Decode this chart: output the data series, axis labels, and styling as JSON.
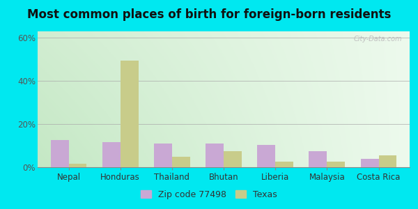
{
  "title": "Most common places of birth for foreign-born residents",
  "categories": [
    "Nepal",
    "Honduras",
    "Thailand",
    "Bhutan",
    "Liberia",
    "Malaysia",
    "Costa Rica"
  ],
  "zip_values": [
    12.5,
    11.5,
    11.0,
    11.0,
    10.5,
    7.5,
    4.0
  ],
  "texas_values": [
    1.5,
    49.5,
    5.0,
    7.5,
    2.5,
    2.5,
    5.5
  ],
  "zip_color": "#c9a8d4",
  "texas_color": "#c8cc8a",
  "bar_width": 0.35,
  "ylim": [
    0,
    63
  ],
  "yticks": [
    0,
    20,
    40,
    60
  ],
  "ytick_labels": [
    "0%",
    "20%",
    "40%",
    "60%"
  ],
  "legend_labels": [
    "Zip code 77498",
    "Texas"
  ],
  "outer_color": "#00e8f0",
  "title_fontsize": 12,
  "tick_fontsize": 8.5,
  "legend_fontsize": 9,
  "watermark_text": "City-Data.com",
  "bg_color_left": "#d4edd8",
  "bg_color_right": "#edfaed"
}
